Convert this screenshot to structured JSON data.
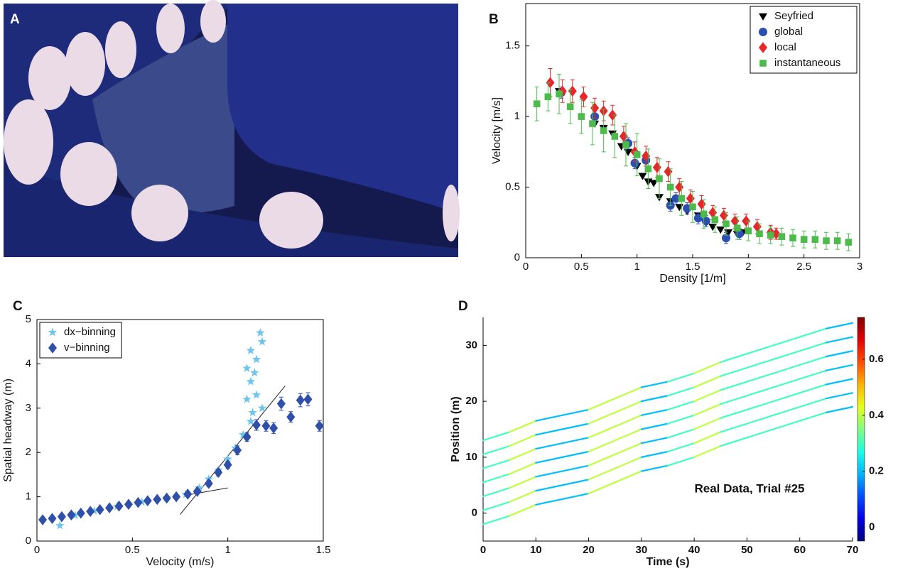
{
  "photo": {
    "label": "A"
  },
  "chart_data": [
    {
      "type": "scatter",
      "label": "B",
      "x_label": "Density [1/m]",
      "y_label": "Velocity [m/s]",
      "xlim": [
        0,
        3
      ],
      "xticks": [
        0,
        0.5,
        1,
        1.5,
        2,
        2.5,
        3
      ],
      "ylim": [
        0,
        1.8
      ],
      "yticks": [
        0,
        0.5,
        1,
        1.5
      ],
      "legend": "upper right",
      "series": [
        {
          "name": "Seyfried",
          "color": "#000000",
          "marker": "triangle-down",
          "x": [
            0.3,
            0.62,
            0.7,
            0.78,
            0.86,
            0.92,
            1.0,
            1.05,
            1.1,
            1.15,
            1.2,
            1.3,
            1.38,
            1.45,
            1.55,
            1.62,
            1.68,
            1.75,
            1.82,
            1.9,
            1.95
          ],
          "values": [
            1.18,
            0.95,
            0.92,
            0.88,
            0.79,
            0.75,
            0.65,
            0.58,
            0.54,
            0.53,
            0.43,
            0.4,
            0.36,
            0.33,
            0.3,
            0.25,
            0.22,
            0.2,
            0.18,
            0.17,
            0.18
          ]
        },
        {
          "name": "global",
          "color": "#2b4fb0",
          "marker": "circle",
          "x": [
            0.32,
            0.62,
            0.92,
            0.98,
            1.08,
            1.3,
            1.35,
            1.45,
            1.55,
            1.62,
            1.8,
            1.92
          ],
          "values": [
            1.17,
            1.0,
            0.81,
            0.67,
            0.69,
            0.37,
            0.42,
            0.35,
            0.28,
            0.26,
            0.14,
            0.17
          ],
          "errors": [
            0.04,
            0.04,
            0.04,
            0.04,
            0.04,
            0.04,
            0.04,
            0.04,
            0.04,
            0.04,
            0.04,
            0.04
          ]
        },
        {
          "name": "local",
          "color": "#e8262a",
          "marker": "diamond",
          "x": [
            0.22,
            0.33,
            0.42,
            0.52,
            0.62,
            0.7,
            0.78,
            0.88,
            0.98,
            1.08,
            1.18,
            1.28,
            1.38,
            1.48,
            1.58,
            1.68,
            1.78,
            1.88,
            1.98,
            2.08,
            2.2,
            2.25
          ],
          "values": [
            1.24,
            1.18,
            1.18,
            1.14,
            1.06,
            1.04,
            1.01,
            0.86,
            0.75,
            0.72,
            0.64,
            0.61,
            0.5,
            0.42,
            0.38,
            0.32,
            0.3,
            0.26,
            0.26,
            0.22,
            0.18,
            0.17
          ],
          "errors": [
            0.1,
            0.08,
            0.08,
            0.07,
            0.07,
            0.07,
            0.07,
            0.07,
            0.07,
            0.07,
            0.07,
            0.07,
            0.06,
            0.06,
            0.06,
            0.05,
            0.05,
            0.05,
            0.05,
            0.05,
            0.05,
            0.04
          ]
        },
        {
          "name": "instantaneous",
          "color": "#4cbb4c",
          "marker": "square",
          "x": [
            0.1,
            0.2,
            0.3,
            0.4,
            0.5,
            0.6,
            0.7,
            0.8,
            0.9,
            1.0,
            1.1,
            1.2,
            1.3,
            1.4,
            1.5,
            1.6,
            1.7,
            1.8,
            1.9,
            2.0,
            2.1,
            2.2,
            2.3,
            2.4,
            2.5,
            2.6,
            2.7,
            2.8,
            2.9
          ],
          "values": [
            1.09,
            1.14,
            1.16,
            1.07,
            1.0,
            0.95,
            0.9,
            0.86,
            0.8,
            0.73,
            0.63,
            0.56,
            0.5,
            0.42,
            0.36,
            0.31,
            0.27,
            0.24,
            0.21,
            0.19,
            0.17,
            0.16,
            0.15,
            0.14,
            0.13,
            0.13,
            0.12,
            0.12,
            0.11
          ],
          "errors": [
            0.12,
            0.1,
            0.14,
            0.12,
            0.12,
            0.15,
            0.15,
            0.15,
            0.15,
            0.15,
            0.14,
            0.14,
            0.13,
            0.12,
            0.11,
            0.1,
            0.09,
            0.08,
            0.08,
            0.07,
            0.07,
            0.06,
            0.06,
            0.06,
            0.06,
            0.06,
            0.06,
            0.06,
            0.06
          ]
        }
      ]
    },
    {
      "type": "scatter",
      "label": "C",
      "x_label": "Velocity (m/s)",
      "y_label": "Spatial headway (m)",
      "xlim": [
        0,
        1.5
      ],
      "xticks": [
        0,
        0.5,
        1,
        1.5
      ],
      "ylim": [
        0,
        5
      ],
      "yticks": [
        0,
        1,
        2,
        3,
        4,
        5
      ],
      "legend": "upper left",
      "series": [
        {
          "name": "dx−binning",
          "color": "#6cc5ec",
          "marker": "star",
          "x": [
            0.12,
            0.2,
            0.3,
            0.42,
            0.55,
            0.68,
            0.78,
            0.85,
            0.9,
            0.95,
            1.0,
            1.04,
            1.08,
            1.12,
            1.18,
            1.15,
            1.12,
            1.1,
            1.15,
            1.12,
            1.18,
            1.17,
            1.13,
            1.1,
            1.14
          ],
          "values": [
            0.35,
            0.58,
            0.68,
            0.78,
            0.88,
            0.97,
            1.05,
            1.2,
            1.4,
            1.6,
            1.85,
            2.1,
            2.4,
            2.7,
            3.0,
            3.3,
            3.6,
            3.9,
            4.1,
            4.3,
            4.5,
            4.7,
            2.9,
            3.2,
            3.8
          ]
        },
        {
          "name": "v−binning",
          "color": "#2f4fa8",
          "marker": "diamond",
          "x": [
            0.03,
            0.08,
            0.13,
            0.18,
            0.23,
            0.28,
            0.33,
            0.38,
            0.43,
            0.48,
            0.53,
            0.58,
            0.63,
            0.68,
            0.73,
            0.79,
            0.84,
            0.9,
            0.95,
            1.0,
            1.05,
            1.1,
            1.15,
            1.2,
            1.24,
            1.28,
            1.33,
            1.38,
            1.42,
            1.48
          ],
          "values": [
            0.48,
            0.51,
            0.55,
            0.59,
            0.63,
            0.67,
            0.71,
            0.75,
            0.79,
            0.83,
            0.87,
            0.91,
            0.94,
            0.97,
            1.0,
            1.06,
            1.12,
            1.3,
            1.55,
            1.72,
            2.05,
            2.35,
            2.62,
            2.6,
            2.55,
            3.1,
            2.8,
            3.18,
            3.2,
            2.6
          ],
          "errors": [
            0.05,
            0.05,
            0.05,
            0.05,
            0.05,
            0.05,
            0.05,
            0.05,
            0.05,
            0.05,
            0.05,
            0.05,
            0.05,
            0.05,
            0.05,
            0.06,
            0.06,
            0.07,
            0.08,
            0.08,
            0.1,
            0.1,
            0.12,
            0.12,
            0.12,
            0.15,
            0.12,
            0.15,
            0.15,
            0.12
          ]
        }
      ],
      "fit_lines": [
        {
          "x": [
            0.75,
            1.3
          ],
          "y": [
            0.6,
            3.5
          ]
        },
        {
          "x": [
            0.8,
            1.0
          ],
          "y": [
            1.05,
            1.2
          ]
        }
      ]
    },
    {
      "type": "trajectories",
      "label": "D",
      "x_label": "Time (s)",
      "y_label": "Position (m)",
      "annotation": "Real Data, Trial #25",
      "xlim": [
        0,
        70
      ],
      "xticks": [
        0,
        10,
        20,
        30,
        40,
        50,
        60,
        70
      ],
      "ylim": [
        -5,
        35
      ],
      "yticks": [
        0,
        10,
        20,
        30
      ],
      "clim": [
        -0.05,
        0.75
      ],
      "cticks": [
        0,
        0.2,
        0.4,
        0.6
      ],
      "x": [
        0,
        5,
        10,
        15,
        20,
        25,
        30,
        35,
        40,
        45,
        50,
        55,
        60,
        65,
        70
      ],
      "series": [
        {
          "values": [
            13,
            14.5,
            16.5,
            17.5,
            18.5,
            20.5,
            22.5,
            23.5,
            25,
            27,
            28.5,
            30,
            31.5,
            33,
            34
          ]
        },
        {
          "values": [
            10.5,
            12,
            14,
            15,
            16,
            18,
            20,
            21,
            22.5,
            24.5,
            26,
            27.5,
            29,
            30.5,
            31.5
          ]
        },
        {
          "values": [
            8,
            9.5,
            11.5,
            12.5,
            13.5,
            15.5,
            17.5,
            18.5,
            20,
            22,
            23.5,
            25,
            26.5,
            28,
            29
          ]
        },
        {
          "values": [
            5.5,
            7,
            9,
            10,
            11,
            13,
            15,
            16,
            17.5,
            19.5,
            21,
            22.5,
            24,
            25.5,
            26.5
          ]
        },
        {
          "values": [
            3,
            4.5,
            6.5,
            7.5,
            8.5,
            10.5,
            12.5,
            13.5,
            15,
            17,
            18.5,
            20,
            21.5,
            23,
            24
          ]
        },
        {
          "values": [
            0.5,
            2,
            4,
            5,
            6,
            8,
            10,
            11,
            12.5,
            14.5,
            16,
            17.5,
            19,
            20.5,
            21.5
          ]
        },
        {
          "values": [
            -2,
            -0.5,
            1.5,
            2.5,
            3.5,
            5.5,
            7.5,
            8.5,
            10,
            12,
            13.5,
            15,
            16.5,
            18,
            19
          ]
        }
      ]
    }
  ]
}
